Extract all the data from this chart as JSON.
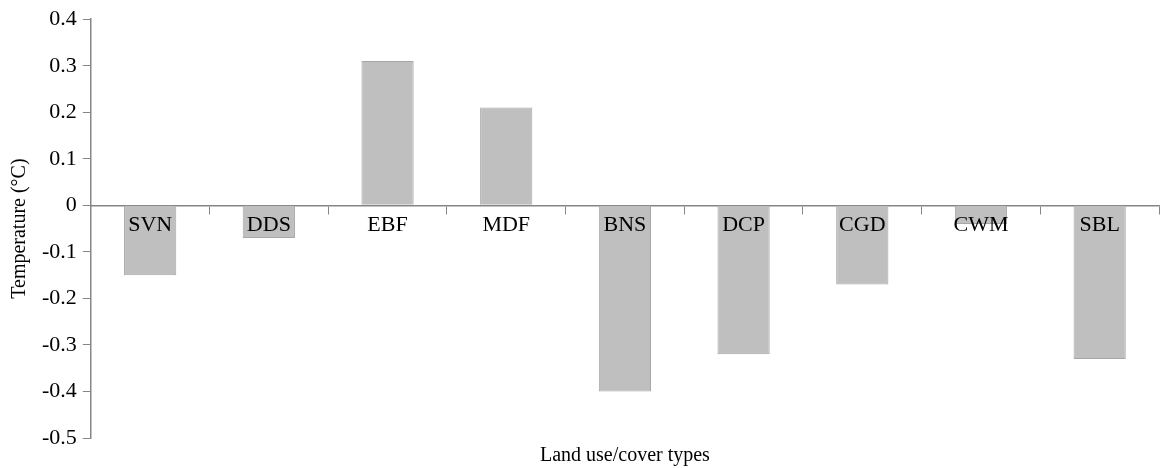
{
  "chart_data": {
    "type": "bar",
    "xlabel": "Land use/cover types",
    "ylabel": "Temperature (°C)",
    "categories": [
      "SVN",
      "DDS",
      "EBF",
      "MDF",
      "BNS",
      "DCP",
      "CGD",
      "CWM",
      "SBL"
    ],
    "values": [
      -0.15,
      -0.07,
      0.31,
      0.21,
      -0.4,
      -0.32,
      -0.17,
      -0.04,
      -0.33
    ],
    "color": "#bfbfbf",
    "ylim": [
      -0.5,
      0.4
    ],
    "yticks": [
      -0.5,
      -0.4,
      -0.3,
      -0.2,
      -0.1,
      0,
      0.1,
      0.2,
      0.3,
      0.4
    ],
    "grid": false,
    "legend": false
  }
}
